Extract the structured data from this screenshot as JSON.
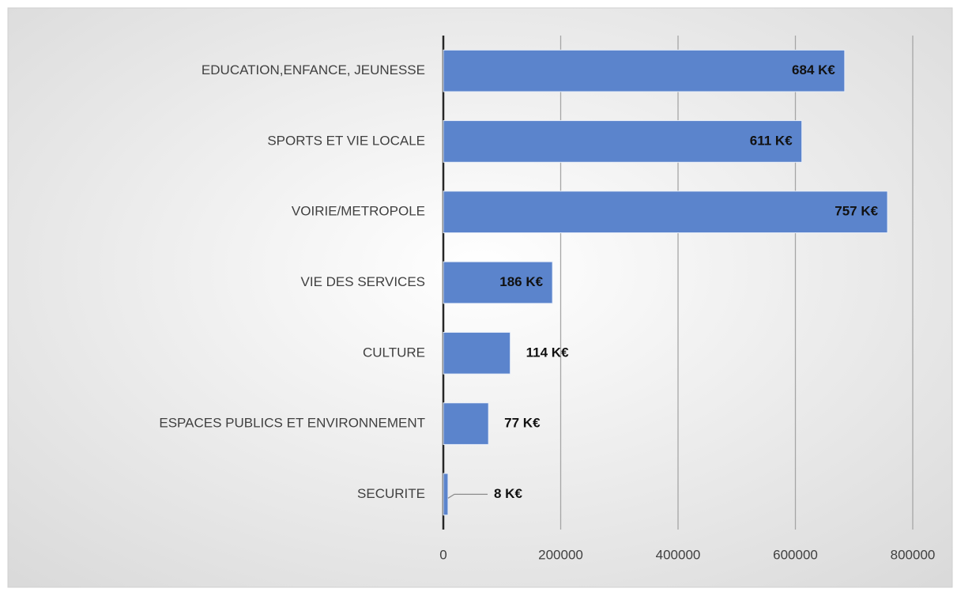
{
  "chart_data": {
    "type": "bar",
    "orientation": "horizontal",
    "categories": [
      "EDUCATION,ENFANCE, JEUNESSE",
      "SPORTS ET VIE LOCALE",
      "VOIRIE/METROPOLE",
      "VIE DES SERVICES",
      "CULTURE",
      "ESPACES PUBLICS ET ENVIRONNEMENT",
      "SECURITE"
    ],
    "values": [
      684000,
      611000,
      757000,
      186000,
      114000,
      77000,
      8000
    ],
    "value_labels": [
      "684 K€",
      "611 K€",
      "757 K€",
      "186 K€",
      "114 K€",
      "77 K€",
      "8 K€"
    ],
    "color": "#5b84cc",
    "xlim": [
      0,
      800000
    ],
    "xticks": [
      0,
      200000,
      400000,
      600000,
      800000
    ],
    "grid": true
  }
}
